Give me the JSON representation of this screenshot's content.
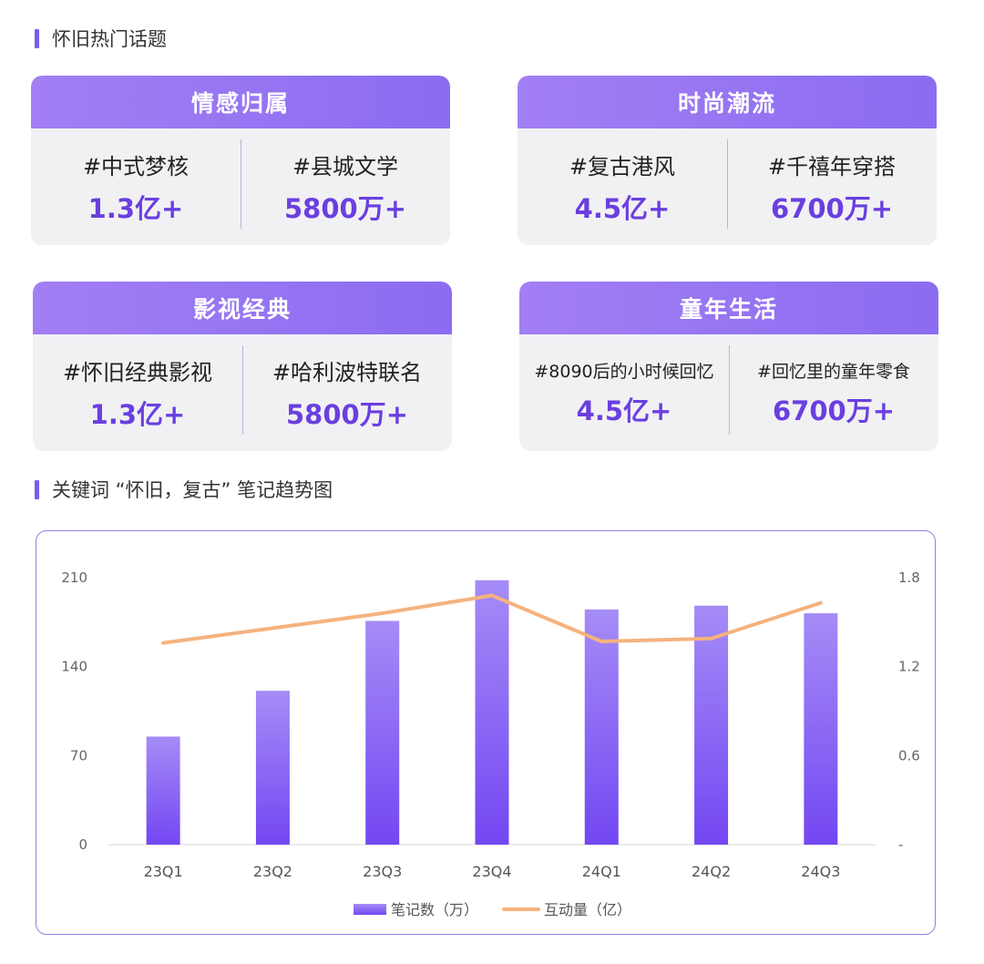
{
  "section1": {
    "title": "怀旧热门话题"
  },
  "cards": [
    {
      "title": "情感归属",
      "topics": [
        {
          "name": "#中式梦核",
          "value": "1.3亿+"
        },
        {
          "name": "#县城文学",
          "value": "5800万+"
        }
      ]
    },
    {
      "title": "时尚潮流",
      "topics": [
        {
          "name": "#复古港风",
          "value": "4.5亿+"
        },
        {
          "name": "#千禧年穿搭",
          "value": "6700万+"
        }
      ]
    },
    {
      "title": "影视经典",
      "topics": [
        {
          "name": "#怀旧经典影视",
          "value": "1.3亿+"
        },
        {
          "name": "#哈利波特联名",
          "value": "5800万+"
        }
      ]
    },
    {
      "title": "童年生活",
      "topics": [
        {
          "name": "#8090后的小时候回忆",
          "value": "4.5亿+"
        },
        {
          "name": "#回忆里的童年零食",
          "value": "6700万+"
        }
      ]
    }
  ],
  "section2": {
    "title": "关键词 “怀旧，复古” 笔记趋势图"
  },
  "colors": {
    "accent": "#7a5cf0",
    "bar_top": "#a58cf6",
    "bar_bottom": "#7347f2",
    "line": "#f5b27e",
    "value_text": "#6a3fe0"
  },
  "chart_data": {
    "type": "bar",
    "categories": [
      "23Q1",
      "23Q2",
      "23Q3",
      "23Q4",
      "24Q1",
      "24Q2",
      "24Q3"
    ],
    "series": [
      {
        "name": "笔记数（万）",
        "type": "bar",
        "axis": "left",
        "values": [
          85,
          121,
          176,
          208,
          185,
          188,
          182
        ]
      },
      {
        "name": "互动量（亿）",
        "type": "line",
        "axis": "right",
        "values": [
          1.36,
          1.46,
          1.56,
          1.68,
          1.37,
          1.39,
          1.63
        ]
      }
    ],
    "y_left": {
      "ticks": [
        "0",
        "70",
        "140",
        "210"
      ],
      "ylim": [
        0,
        210
      ]
    },
    "y_right": {
      "ticks": [
        "-",
        "0.6",
        "1.2",
        "1.8"
      ],
      "ylim": [
        0,
        1.8
      ]
    },
    "legend": "bottom-center",
    "grid": false
  }
}
